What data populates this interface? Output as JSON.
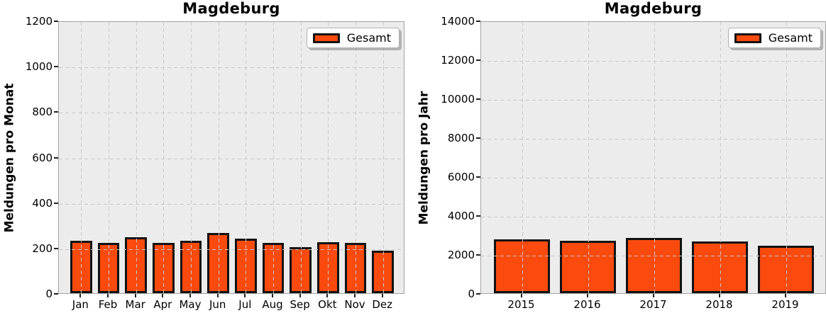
{
  "chart_data": [
    {
      "type": "bar",
      "title": "Magdeburg",
      "ylabel": "Meldungen pro Monat",
      "xlabel": "",
      "categories": [
        "Jan",
        "Feb",
        "Mar",
        "Apr",
        "May",
        "Jun",
        "Jul",
        "Aug",
        "Sep",
        "Okt",
        "Nov",
        "Dez"
      ],
      "series": [
        {
          "name": "Gesamt",
          "values": [
            231,
            222,
            246,
            222,
            230,
            266,
            241,
            222,
            202,
            224,
            222,
            187
          ]
        }
      ],
      "ylim": [
        0,
        1200
      ],
      "ytick_step": 200,
      "grid": true,
      "grid_style": "dashed",
      "legend_position": "upper right"
    },
    {
      "type": "bar",
      "title": "Magdeburg",
      "ylabel": "Meldungen pro Jahr",
      "xlabel": "",
      "categories": [
        "2015",
        "2016",
        "2017",
        "2018",
        "2019"
      ],
      "series": [
        {
          "name": "Gesamt",
          "values": [
            2780,
            2700,
            2820,
            2660,
            2450
          ]
        }
      ],
      "ylim": [
        0,
        14000
      ],
      "ytick_step": 2000,
      "grid": true,
      "grid_style": "dashed",
      "legend_position": "upper right"
    }
  ],
  "colors": {
    "bar_fill": "#FA4A0E",
    "bar_edge": "#121212",
    "plot_background": "#ECECEC",
    "figure_background": "#FFFFFF",
    "grid_line": "#C9C9C9",
    "text": "#000000",
    "legend_background": "#FFFFFF",
    "legend_border": "#B0B0B0"
  }
}
